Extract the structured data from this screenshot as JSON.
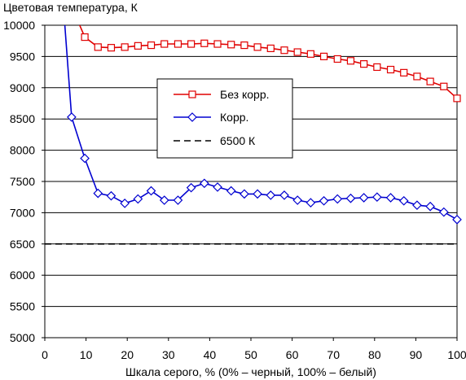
{
  "chart_data": {
    "type": "line",
    "title": "",
    "ylabel": "Цветовая температура, К",
    "xlabel": "Шкала серого, % (0% – черный, 100% – белый)",
    "xlim": [
      0,
      100
    ],
    "ylim": [
      5000,
      10000
    ],
    "x_ticks": [
      0,
      10,
      20,
      30,
      40,
      50,
      60,
      70,
      80,
      90,
      100
    ],
    "y_ticks": [
      5000,
      5500,
      6000,
      6500,
      7000,
      7500,
      8000,
      8500,
      9000,
      9500,
      10000
    ],
    "grid": "horizontal",
    "legend_placement": "center",
    "series": [
      {
        "name": "Без корр.",
        "color": "#e00000",
        "marker": "square",
        "x": [
          6.5,
          9.7,
          12.9,
          16.1,
          19.4,
          22.6,
          25.8,
          29.0,
          32.3,
          35.5,
          38.7,
          41.9,
          45.2,
          48.4,
          51.6,
          54.8,
          58.1,
          61.3,
          64.5,
          67.7,
          71.0,
          74.2,
          77.4,
          80.6,
          83.9,
          87.1,
          90.3,
          93.5,
          96.8,
          100
        ],
        "values": [
          10300,
          9810,
          9650,
          9640,
          9650,
          9670,
          9680,
          9700,
          9700,
          9700,
          9710,
          9700,
          9690,
          9680,
          9650,
          9630,
          9600,
          9570,
          9540,
          9500,
          9460,
          9430,
          9380,
          9330,
          9290,
          9240,
          9180,
          9100,
          9020,
          8830
        ]
      },
      {
        "name": "Корр.",
        "color": "#0000d0",
        "marker": "diamond",
        "x": [
          4.8,
          6.5,
          9.7,
          12.9,
          16.1,
          19.4,
          22.6,
          25.8,
          29.0,
          32.3,
          35.5,
          38.7,
          41.9,
          45.2,
          48.4,
          51.6,
          54.8,
          58.1,
          61.3,
          64.5,
          67.7,
          71.0,
          74.2,
          77.4,
          80.6,
          83.9,
          87.1,
          90.3,
          93.5,
          96.8,
          100
        ],
        "values": [
          10050,
          8530,
          7870,
          7310,
          7270,
          7150,
          7220,
          7350,
          7200,
          7200,
          7400,
          7470,
          7410,
          7350,
          7300,
          7300,
          7280,
          7280,
          7200,
          7160,
          7190,
          7220,
          7230,
          7240,
          7250,
          7240,
          7190,
          7120,
          7100,
          7010,
          6890
        ]
      },
      {
        "name": "6500 К",
        "color": "#000000",
        "marker": "none",
        "dashed": true,
        "x": [
          0,
          100
        ],
        "values": [
          6500,
          6500
        ]
      }
    ]
  }
}
